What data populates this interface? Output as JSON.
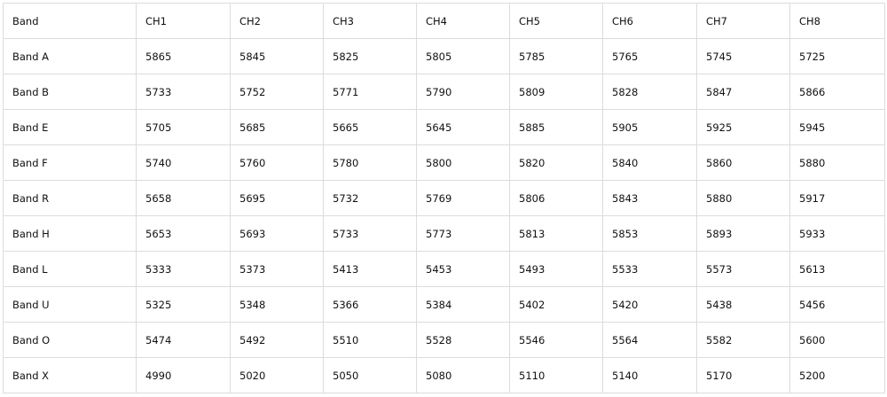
{
  "table": {
    "headers": [
      "Band",
      "CH1",
      "CH2",
      "CH3",
      "CH4",
      "CH5",
      "CH6",
      "CH7",
      "CH8"
    ],
    "rows": [
      {
        "band": "Band A",
        "values": [
          "5865",
          "5845",
          "5825",
          "5805",
          "5785",
          "5765",
          "5745",
          "5725"
        ]
      },
      {
        "band": "Band B",
        "values": [
          "5733",
          "5752",
          "5771",
          "5790",
          "5809",
          "5828",
          "5847",
          "5866"
        ]
      },
      {
        "band": "Band E",
        "values": [
          "5705",
          "5685",
          "5665",
          "5645",
          "5885",
          "5905",
          "5925",
          "5945"
        ]
      },
      {
        "band": "Band F",
        "values": [
          "5740",
          "5760",
          "5780",
          "5800",
          "5820",
          "5840",
          "5860",
          "5880"
        ]
      },
      {
        "band": "Band R",
        "values": [
          "5658",
          "5695",
          "5732",
          "5769",
          "5806",
          "5843",
          "5880",
          "5917"
        ]
      },
      {
        "band": "Band H",
        "values": [
          "5653",
          "5693",
          "5733",
          "5773",
          "5813",
          "5853",
          "5893",
          "5933"
        ]
      },
      {
        "band": "Band L",
        "values": [
          "5333",
          "5373",
          "5413",
          "5453",
          "5493",
          "5533",
          "5573",
          "5613"
        ]
      },
      {
        "band": "Band U",
        "values": [
          "5325",
          "5348",
          "5366",
          "5384",
          "5402",
          "5420",
          "5438",
          "5456"
        ]
      },
      {
        "band": "Band O",
        "values": [
          "5474",
          "5492",
          "5510",
          "5528",
          "5546",
          "5564",
          "5582",
          "5600"
        ]
      },
      {
        "band": "Band X",
        "values": [
          "4990",
          "5020",
          "5050",
          "5080",
          "5110",
          "5140",
          "5170",
          "5200"
        ]
      }
    ]
  }
}
